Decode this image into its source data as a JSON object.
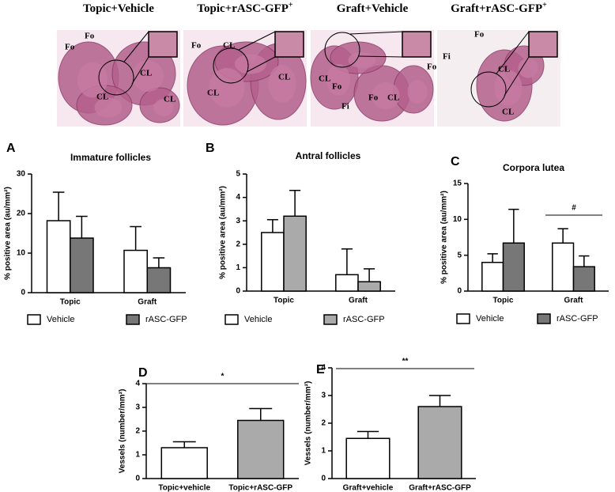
{
  "panels": [
    {
      "title": "Topic+Vehicle",
      "labels": [
        "Fo",
        "Fo",
        "CL",
        "CL",
        "CL"
      ]
    },
    {
      "title": "Topic+rASC-GFP",
      "sup": "+",
      "labels": [
        "Fo",
        "CL",
        "CL",
        "CL"
      ]
    },
    {
      "title": "Graft+Vehicle",
      "labels": [
        "CL",
        "Fo",
        "Fo",
        "Fi",
        "Fo",
        "CL"
      ]
    },
    {
      "title": "Graft+rASC-GFP",
      "sup": "+",
      "labels": [
        "Fo",
        "Fi",
        "CL",
        "CL"
      ]
    }
  ],
  "chart_data": [
    {
      "type": "bar",
      "letter": "A",
      "title": "Immature follicles",
      "y_label": "% positive area (au/mm²)",
      "categories": [
        "Topic",
        "Graft"
      ],
      "ylim": [
        0,
        30
      ],
      "yticks": [
        0,
        10,
        20,
        30
      ],
      "series": [
        {
          "name": "Vehicle",
          "color": "#ffffff",
          "values": [
            18.2,
            10.7
          ],
          "errors": [
            7.2,
            6.0
          ]
        },
        {
          "name": "rASC-GFP",
          "color": "#777777",
          "values": [
            13.8,
            6.3
          ],
          "errors": [
            5.5,
            2.5
          ]
        }
      ]
    },
    {
      "type": "bar",
      "letter": "B",
      "title": "Antral follicles",
      "y_label": "% positive area (au/mm²)",
      "categories": [
        "Topic",
        "Graft"
      ],
      "ylim": [
        0,
        5
      ],
      "yticks": [
        0,
        1,
        2,
        3,
        4,
        5
      ],
      "series": [
        {
          "name": "Vehicle",
          "color": "#ffffff",
          "values": [
            2.5,
            0.7
          ],
          "errors": [
            0.55,
            1.1
          ]
        },
        {
          "name": "rASC-GFP",
          "color": "#aaaaaa",
          "values": [
            3.2,
            0.4
          ],
          "errors": [
            1.1,
            0.55
          ]
        }
      ]
    },
    {
      "type": "bar",
      "letter": "C",
      "title": "Corpora lutea",
      "y_label": "% positive area (au/mm²)",
      "categories": [
        "Topic",
        "Graft"
      ],
      "ylim": [
        0,
        15
      ],
      "yticks": [
        0,
        5,
        10,
        15
      ],
      "annotation": "#",
      "series": [
        {
          "name": "Vehicle",
          "color": "#ffffff",
          "values": [
            4.0,
            6.7
          ],
          "errors": [
            1.2,
            2.0
          ]
        },
        {
          "name": "rASC-GFP",
          "color": "#777777",
          "values": [
            6.7,
            3.4
          ],
          "errors": [
            4.7,
            1.5
          ]
        }
      ]
    },
    {
      "type": "bar",
      "letter": "D",
      "y_label": "Vessels (number/mm²)",
      "categories": [
        "Topic+vehicle",
        "Topic+rASC-GFP"
      ],
      "ylim": [
        0,
        4
      ],
      "yticks": [
        0,
        1,
        2,
        3,
        4
      ],
      "annotation": "*",
      "colors": [
        "#ffffff",
        "#aaaaaa"
      ],
      "values": [
        1.3,
        2.45
      ],
      "errors": [
        0.25,
        0.5
      ]
    },
    {
      "type": "bar",
      "letter": "E",
      "y_label": "Vessels (number/mm²)",
      "categories": [
        "Graft+vehicle",
        "Graft+rASC-GFP"
      ],
      "ylim": [
        0,
        4
      ],
      "yticks": [
        0,
        1,
        2,
        3,
        4
      ],
      "annotation": "**",
      "colors": [
        "#ffffff",
        "#aaaaaa"
      ],
      "values": [
        1.45,
        2.6
      ],
      "errors": [
        0.25,
        0.4
      ]
    }
  ]
}
